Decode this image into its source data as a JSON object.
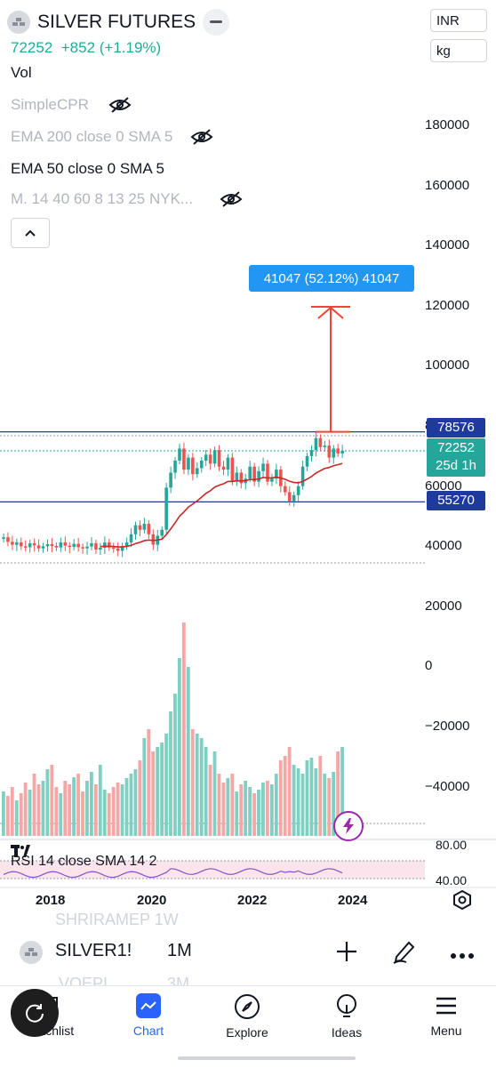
{
  "header": {
    "symbol": "SILVER FUTURES",
    "price": "72252",
    "change": "+852 (+1.19%)",
    "currency": "INR",
    "unit": "kg"
  },
  "legend": {
    "vol": "Vol",
    "simple_cpr": "SimpleCPR",
    "ema200": "EMA 200 close 0 SMA 5",
    "ema50": "EMA 50 close 0 SMA 5",
    "multi": "M. 14 40 60 8 13 25 NYK..."
  },
  "price_axis": {
    "ticks": [
      "180000",
      "160000",
      "140000",
      "120000",
      "100000",
      "80000",
      "60000",
      "40000",
      "20000",
      "0",
      "−20000",
      "−40000"
    ],
    "tag_upper": "78576",
    "tag_price": "72252",
    "tag_countdown": "25d 1h",
    "tag_lower": "55270"
  },
  "measure": {
    "label": "41047 (52.12%) 41047"
  },
  "rsi": {
    "label": "RSI 14 close SMA 14 2",
    "axis_top": "80.00",
    "axis_bottom": "40.00"
  },
  "time_axis": {
    "labels": [
      "2018",
      "2020",
      "2022",
      "2024"
    ]
  },
  "bottom_bar": {
    "symbol": "SILVER1!",
    "interval": "1M",
    "behind_top": "SHRIRAMEP 1W",
    "behind_bottom": "VOEPI",
    "behind_interval": "3M"
  },
  "nav": {
    "items": [
      {
        "label": "Watchlist",
        "icon": "watchlist-icon"
      },
      {
        "label": "Chart",
        "icon": "chart-icon"
      },
      {
        "label": "Explore",
        "icon": "compass-icon"
      },
      {
        "label": "Ideas",
        "icon": "lightbulb-icon"
      },
      {
        "label": "Menu",
        "icon": "menu-icon"
      }
    ]
  },
  "colors": {
    "up": "#26a69a",
    "down": "#ef5350",
    "hline": "#1e3a9c",
    "accent": "#2962ff",
    "ema": "#c62828",
    "measure": "#f44336",
    "rsi": "#7e57c2"
  }
}
